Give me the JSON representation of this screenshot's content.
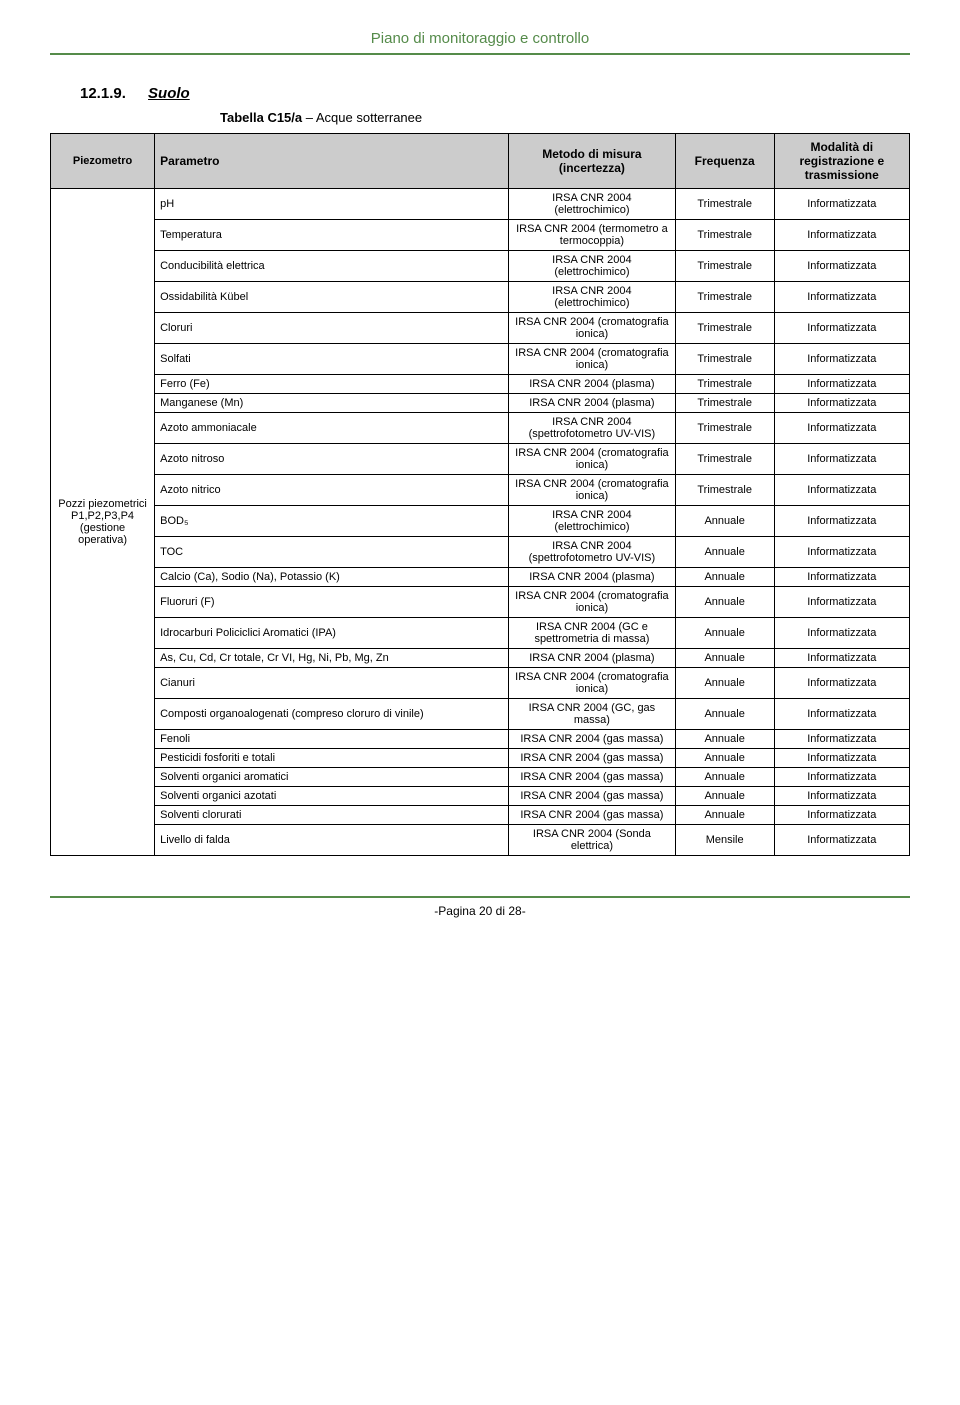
{
  "header": {
    "title": "Piano di monitoraggio e controllo"
  },
  "section": {
    "number": "12.1.9.",
    "title": "Suolo"
  },
  "tableCaption": {
    "label": "Tabella C15/a",
    "suffix": " – Acque sotterranee"
  },
  "columns": {
    "c0": "Piezometro",
    "c1": "Parametro",
    "c2": "Metodo di misura (incertezza)",
    "c3": "Frequenza",
    "c4": "Modalità di registrazione e trasmissione"
  },
  "piezoCell": "Pozzi piezometrici P1,P2,P3,P4 (gestione operativa)",
  "rows": [
    {
      "param": "pH",
      "metodo": "IRSA CNR 2004 (elettrochimico)",
      "freq": "Trimestrale",
      "mod": "Informatizzata"
    },
    {
      "param": "Temperatura",
      "metodo": "IRSA CNR 2004 (termometro a termocoppia)",
      "freq": "Trimestrale",
      "mod": "Informatizzata"
    },
    {
      "param": "Conducibilità elettrica",
      "metodo": "IRSA CNR 2004 (elettrochimico)",
      "freq": "Trimestrale",
      "mod": "Informatizzata"
    },
    {
      "param": "Ossidabilità Kübel",
      "metodo": "IRSA CNR 2004 (elettrochimico)",
      "freq": "Trimestrale",
      "mod": "Informatizzata"
    },
    {
      "param": "Cloruri",
      "metodo": "IRSA CNR 2004 (cromatografia ionica)",
      "freq": "Trimestrale",
      "mod": "Informatizzata"
    },
    {
      "param": "Solfati",
      "metodo": "IRSA CNR 2004 (cromatografia ionica)",
      "freq": "Trimestrale",
      "mod": "Informatizzata"
    },
    {
      "param": "Ferro (Fe)",
      "metodo": "IRSA CNR 2004 (plasma)",
      "freq": "Trimestrale",
      "mod": "Informatizzata"
    },
    {
      "param": "Manganese (Mn)",
      "metodo": "IRSA CNR 2004 (plasma)",
      "freq": "Trimestrale",
      "mod": "Informatizzata"
    },
    {
      "param": "Azoto ammoniacale",
      "metodo": "IRSA CNR 2004 (spettrofotometro UV-VIS)",
      "freq": "Trimestrale",
      "mod": "Informatizzata"
    },
    {
      "param": "Azoto nitroso",
      "metodo": "IRSA CNR 2004 (cromatografia ionica)",
      "freq": "Trimestrale",
      "mod": "Informatizzata"
    },
    {
      "param": "Azoto nitrico",
      "metodo": "IRSA CNR 2004 (cromatografia ionica)",
      "freq": "Trimestrale",
      "mod": "Informatizzata"
    },
    {
      "param": "BOD₅",
      "metodo": "IRSA CNR 2004 (elettrochimico)",
      "freq": "Annuale",
      "mod": "Informatizzata"
    },
    {
      "param": "TOC",
      "metodo": "IRSA CNR 2004 (spettrofotometro UV-VIS)",
      "freq": "Annuale",
      "mod": "Informatizzata"
    },
    {
      "param": "Calcio (Ca), Sodio (Na), Potassio (K)",
      "metodo": "IRSA CNR 2004 (plasma)",
      "freq": "Annuale",
      "mod": "Informatizzata"
    },
    {
      "param": "Fluoruri (F)",
      "metodo": "IRSA CNR 2004 (cromatografia ionica)",
      "freq": "Annuale",
      "mod": "Informatizzata"
    },
    {
      "param": "Idrocarburi Policiclici Aromatici (IPA)",
      "metodo": "IRSA CNR 2004 (GC e spettrometria di massa)",
      "freq": "Annuale",
      "mod": "Informatizzata"
    },
    {
      "param": "As, Cu, Cd, Cr totale, Cr VI, Hg, Ni, Pb, Mg, Zn",
      "metodo": "IRSA CNR 2004 (plasma)",
      "freq": "Annuale",
      "mod": "Informatizzata"
    },
    {
      "param": "Cianuri",
      "metodo": "IRSA CNR 2004 (cromatografia ionica)",
      "freq": "Annuale",
      "mod": "Informatizzata"
    },
    {
      "param": "Composti organoalogenati (compreso cloruro di vinile)",
      "metodo": "IRSA CNR 2004 (GC, gas massa)",
      "freq": "Annuale",
      "mod": "Informatizzata"
    },
    {
      "param": "Fenoli",
      "metodo": "IRSA CNR 2004 (gas massa)",
      "freq": "Annuale",
      "mod": "Informatizzata"
    },
    {
      "param": "Pesticidi fosforiti e totali",
      "metodo": "IRSA CNR 2004 (gas massa)",
      "freq": "Annuale",
      "mod": "Informatizzata"
    },
    {
      "param": "Solventi organici aromatici",
      "metodo": "IRSA CNR 2004 (gas massa)",
      "freq": "Annuale",
      "mod": "Informatizzata"
    },
    {
      "param": "Solventi organici azotati",
      "metodo": "IRSA CNR 2004 (gas massa)",
      "freq": "Annuale",
      "mod": "Informatizzata"
    },
    {
      "param": "Solventi clorurati",
      "metodo": "IRSA CNR 2004 (gas massa)",
      "freq": "Annuale",
      "mod": "Informatizzata"
    },
    {
      "param": "Livello di falda",
      "metodo": "IRSA CNR 2004 (Sonda elettrica)",
      "freq": "Mensile",
      "mod": "Informatizzata"
    }
  ],
  "footer": {
    "text": "-Pagina 20 di 28-"
  },
  "colors": {
    "accent": "#558b4a",
    "headerBg": "#cccccc"
  }
}
